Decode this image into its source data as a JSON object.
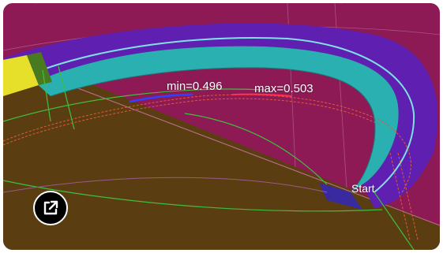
{
  "labels": {
    "min": "min=0.496",
    "max": "max=0.503",
    "start": "Start"
  },
  "controls": {
    "expand_icon": "open-in-new-icon"
  },
  "colors": {
    "background_magenta": "#8d1a55",
    "floor_brown": "#5a3e12",
    "ring_purple": "#5f1fb0",
    "ring_teal": "#2ab0b0",
    "ring_yellow": "#e6e02a",
    "button_bg": "#000000"
  }
}
